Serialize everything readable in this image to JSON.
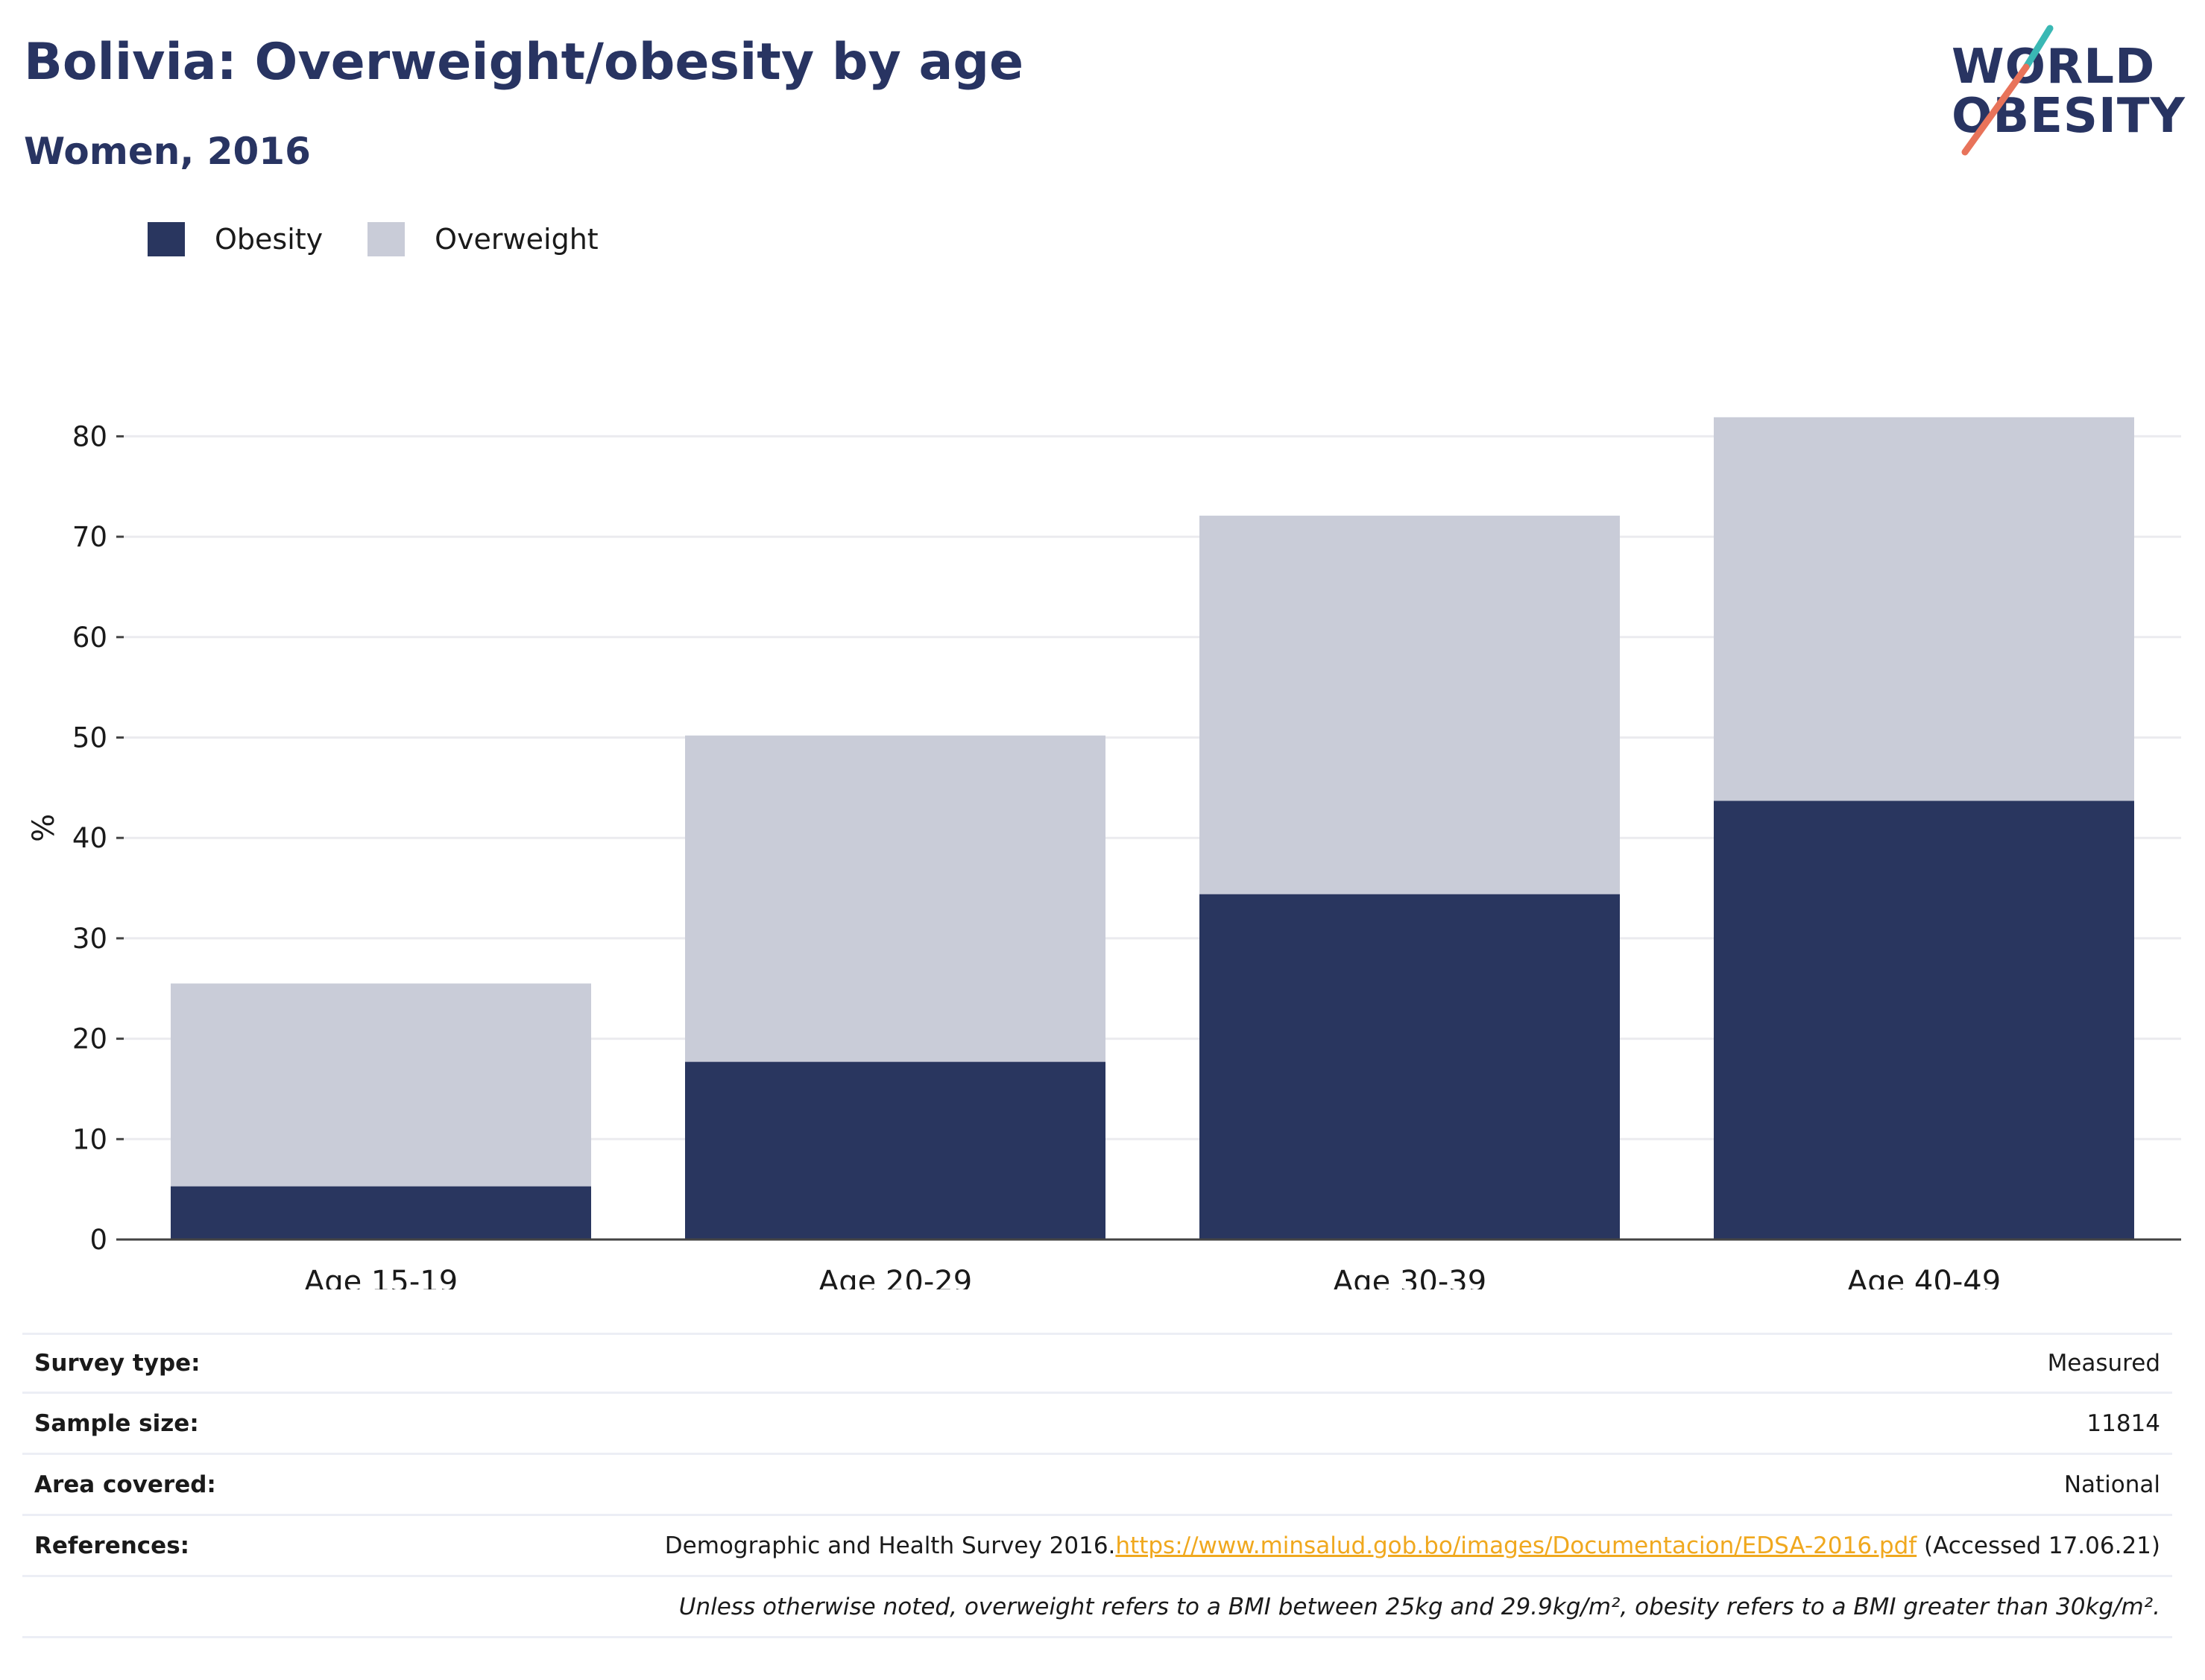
{
  "header": {
    "title": "Bolivia: Overweight/obesity by age",
    "subtitle": "Women, 2016"
  },
  "logo": {
    "line1": "WORLD",
    "line2": "OBESITY",
    "accent_teal": "#3ab8b4",
    "accent_coral": "#e8735a"
  },
  "legend": {
    "items": [
      {
        "label": "Obesity",
        "color": "#29365f"
      },
      {
        "label": "Overweight",
        "color": "#c9ccd8"
      }
    ]
  },
  "chart_data": {
    "type": "bar",
    "stacked": true,
    "categories": [
      "Age 15-19",
      "Age 20-29",
      "Age 30-39",
      "Age 40-49"
    ],
    "series": [
      {
        "name": "Obesity",
        "color": "#29365f",
        "values": [
          5.3,
          17.7,
          34.4,
          43.7
        ]
      },
      {
        "name": "Overweight",
        "color": "#c9ccd8",
        "values": [
          20.2,
          32.5,
          37.7,
          38.2
        ]
      }
    ],
    "totals": [
      25.5,
      50.2,
      72.1,
      81.9
    ],
    "ylabel": "%",
    "xlabel": "",
    "ylim": [
      0,
      82
    ],
    "yticks": [
      0,
      10,
      20,
      30,
      40,
      50,
      60,
      70,
      80
    ],
    "grid": true
  },
  "info": {
    "survey_type_label": "Survey type:",
    "survey_type_value": "Measured",
    "sample_size_label": "Sample size:",
    "sample_size_value": "11814",
    "area_label": "Area covered:",
    "area_value": "National",
    "references_label": "References:",
    "references_text": "Demographic and Health Survey 2016.",
    "references_link": "https://www.minsalud.gob.bo/images/Documentacion/EDSA-2016.pdf",
    "references_accessed": " (Accessed 17.06.21)",
    "footnote": "Unless otherwise noted, overweight refers to a BMI between 25kg and 29.9kg/m², obesity refers to a BMI greater than 30kg/m²."
  }
}
